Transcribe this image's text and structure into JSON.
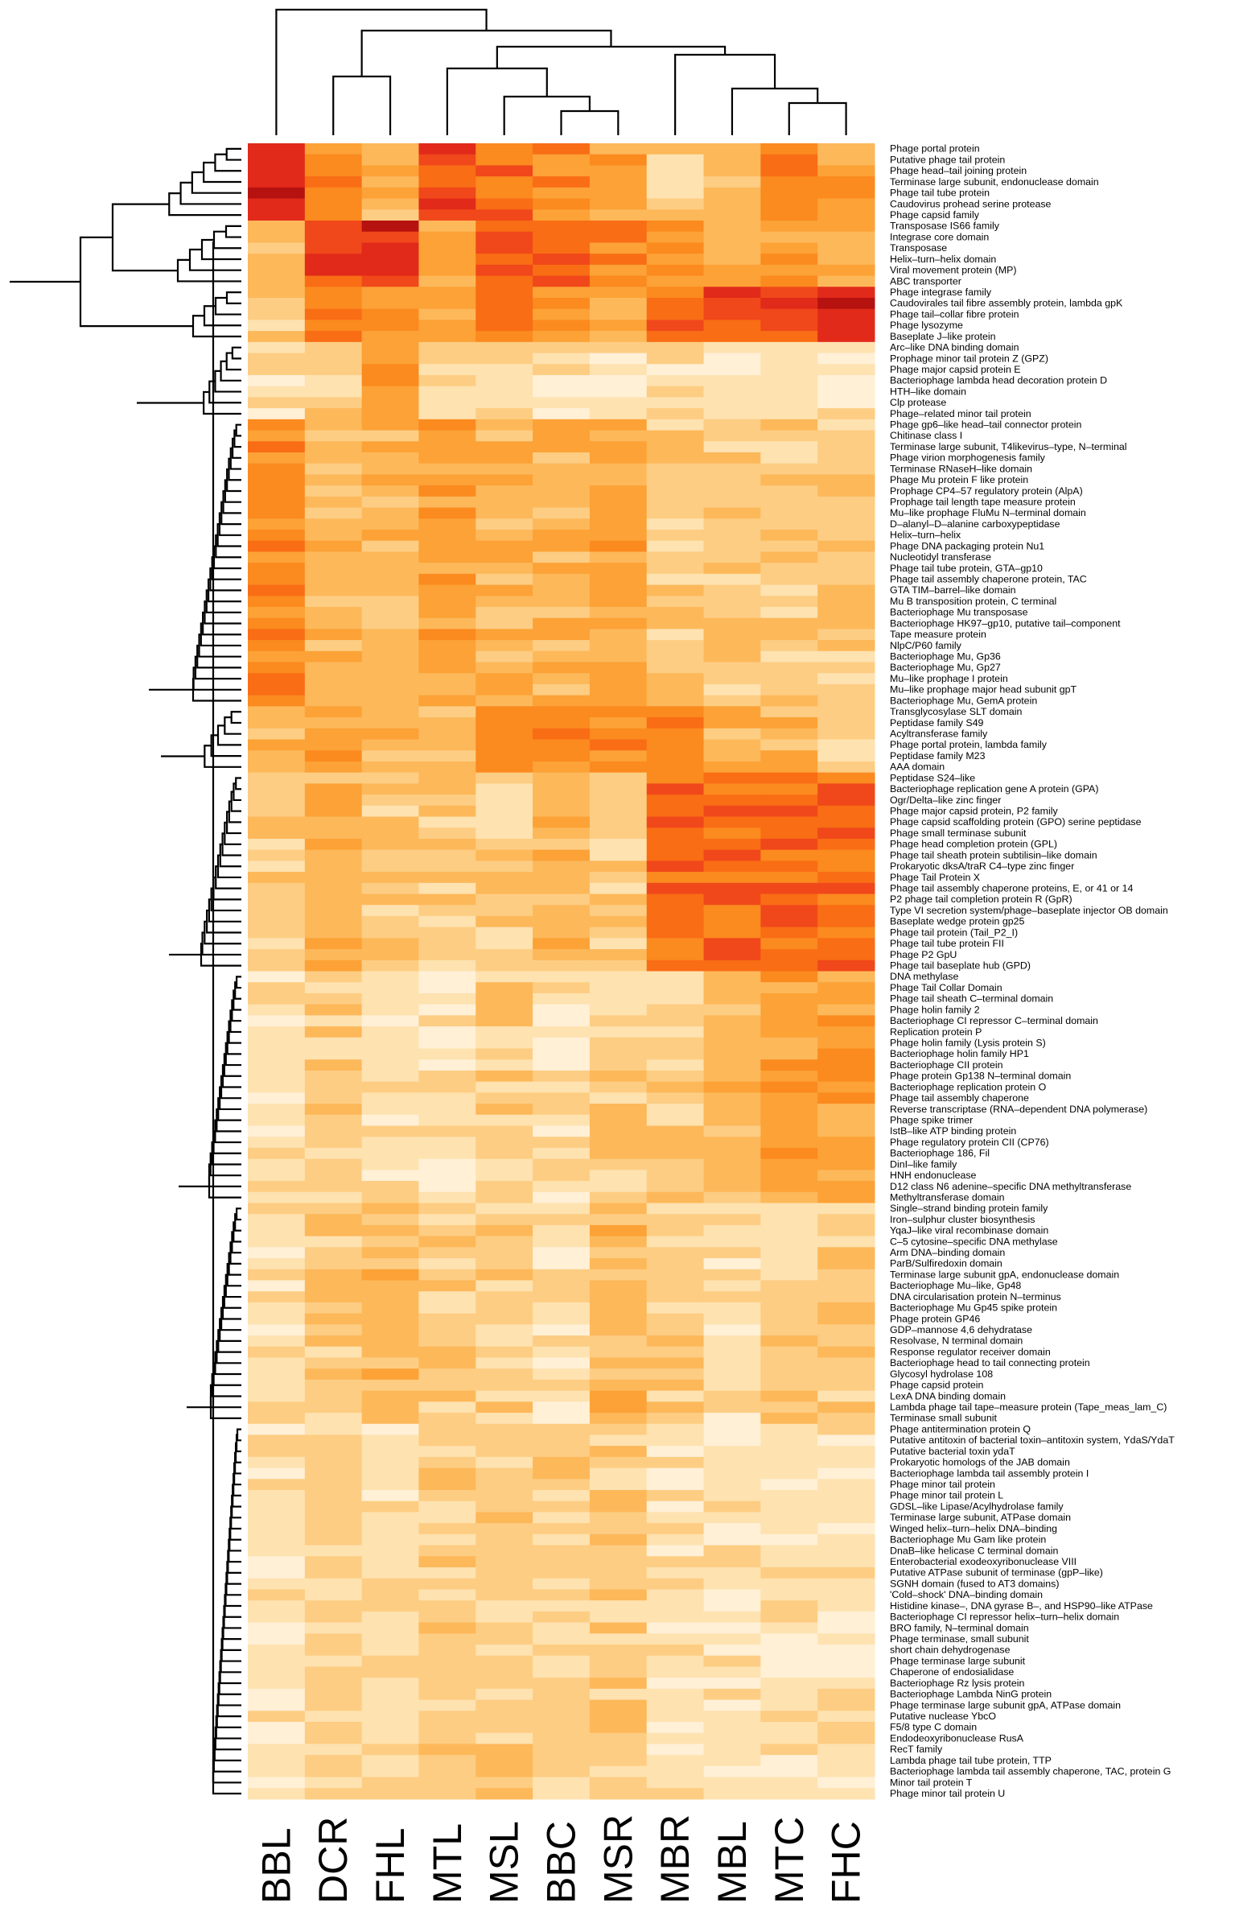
{
  "chart_data": {
    "type": "heatmap",
    "title": "",
    "color_scale": [
      "#fffdf6",
      "#fff0d6",
      "#fee2b0",
      "#fdcd83",
      "#fdb85a",
      "#fca236",
      "#fb8a1f",
      "#f96d15",
      "#f0481a",
      "#e12a1a",
      "#b51210",
      "#7f0000"
    ],
    "columns": [
      "BBL",
      "DCR",
      "FHL",
      "MTL",
      "MSL",
      "BBC",
      "MSR",
      "MBR",
      "MBL",
      "MTC",
      "FHC"
    ],
    "rows": [
      "Phage portal protein",
      "Putative phage tail protein",
      "Phage head–tail joining protein",
      "Terminase large subunit, endonuclease domain",
      "Phage tail tube protein",
      "Caudovirus prohead serine protease",
      "Phage capsid family",
      "Transposase IS66 family",
      "Integrase core domain",
      "Transposase",
      "Helix–turn–helix domain",
      "Viral movement protein (MP)",
      "ABC transporter",
      "Phage integrase family",
      "Caudovirales tail fibre assembly protein, lambda gpK",
      "Phage tail–collar fibre protein",
      "Phage lysozyme",
      "Baseplate J–like protein",
      "Arc–like DNA binding domain",
      "Prophage minor tail protein Z (GPZ)",
      "Phage major capsid protein E",
      "Bacteriophage lambda head decoration protein D",
      "HTH–like domain",
      "Clp protease",
      "Phage–related minor tail protein",
      "Phage gp6–like head–tail connector protein",
      "Chitinase class I",
      "Terminase large subunit, T4likevirus–type, N–terminal",
      "Phage virion morphogenesis family",
      "Terminase RNaseH–like domain",
      "Phage Mu protein F like protein",
      "Prophage CP4–57 regulatory protein (AlpA)",
      "Prophage tail length tape measure protein",
      "Mu–like prophage FluMu N–terminal domain",
      "D–alanyl–D–alanine carboxypeptidase",
      "Helix–turn–helix",
      "Phage DNA packaging protein Nu1",
      "Nucleotidyl transferase",
      "Phage tail tube protein, GTA–gp10",
      "Phage tail assembly chaperone protein, TAC",
      "GTA TIM–barrel–like domain",
      "Mu B transposition protein, C terminal",
      "Bacteriophage Mu transposase",
      "Bacteriophage HK97–gp10, putative tail–component",
      "Tape measure protein",
      "NlpC/P60 family",
      "Bacteriophage Mu, Gp36",
      "Bacteriophage Mu, Gp27",
      "Mu–like prophage I protein",
      "Mu–like prophage major head subunit gpT",
      "Bacteriophage Mu, GemA protein",
      "Transglycosylase SLT domain",
      "Peptidase family S49",
      "Acyltransferase family",
      "Phage portal protein, lambda family",
      "Peptidase family M23",
      "AAA domain",
      "Peptidase S24–like",
      "Bacteriophage replication gene A protein (GPA)",
      "Ogr/Delta–like zinc finger",
      "Phage major capsid protein, P2 family",
      "Phage capsid scaffolding protein (GPO) serine peptidase",
      "Phage small terminase subunit",
      "Phage head completion protein (GPL)",
      "Phage tail sheath protein subtilisin–like domain",
      "Prokaryotic dksA/traR C4–type zinc finger",
      "Phage Tail Protein X",
      "Phage tail assembly chaperone proteins, E, or 41 or 14",
      "P2 phage tail completion protein R (GpR)",
      "Type VI secretion system/phage–baseplate injector OB domain",
      "Baseplate wedge protein gp25",
      "Phage tail protein (Tail_P2_I)",
      "Phage tail tube protein FII",
      "Phage P2 GpU",
      "Phage tail baseplate hub (GPD)",
      "DNA methylase",
      "Phage Tail Collar Domain",
      "Phage tail sheath C–terminal domain",
      "Phage holin family 2",
      "Bacteriophage CI repressor C–terminal domain",
      "Replication protein P",
      "Phage holin family (Lysis protein S)",
      "Bacteriophage holin family HP1",
      "Bacteriophage CII protein",
      "Phage protein Gp138 N–terminal domain",
      "Bacteriophage replication protein O",
      "Phage tail assembly chaperone",
      "Reverse transcriptase (RNA–dependent DNA polymerase)",
      "Phage spike trimer",
      "IstB–like ATP binding protein",
      "Phage regulatory protein CII (CP76)",
      "Bacteriophage 186, Fil",
      "DinI–like family",
      "HNH endonuclease",
      "D12 class N6 adenine–specific DNA methyltransferase",
      "Methyltransferase domain",
      "Single–strand binding protein family",
      "Iron–sulphur cluster biosynthesis",
      "YqaJ–like viral recombinase domain",
      "C–5 cytosine–specific DNA methylase",
      "Arm DNA–binding domain",
      "ParB/Sulfiredoxin domain",
      "Terminase large subunit gpA, endonuclease domain",
      "Bacteriophage Mu–like, Gp48",
      "DNA circularisation protein N–terminus",
      "Bacteriophage Mu Gp45 spike protein",
      "Phage protein GP46",
      "GDP–mannose 4,6 dehydratase",
      "Resolvase, N terminal domain",
      "Response regulator receiver domain",
      "Bacteriophage head to tail connecting protein",
      "Glycosyl hydrolase 108",
      "Phage capsid protein",
      "LexA DNA binding domain",
      "Lambda phage tail tape–measure protein (Tape_meas_lam_C)",
      "Terminase small subunit",
      "Phage antitermination protein Q",
      "Putative antitoxin of bacterial toxin–antitoxin system, YdaS/YdaT",
      "Putative bacterial toxin ydaT",
      "Prokaryotic homologs of the JAB domain",
      "Bacteriophage lambda tail assembly protein I",
      "Phage minor tail protein",
      "Phage minor tail protein L",
      "GDSL–like Lipase/Acylhydrolase family",
      "Terminase large subunit, ATPase domain",
      "Winged helix–turn–helix DNA–binding",
      "Bacteriophage Mu Gam like protein",
      "DnaB–like helicase C terminal domain",
      "Enterobacterial exodeoxyribonuclease VIII",
      "Putative ATPase subunit of terminase (gpP–like)",
      "SGNH domain (fused to AT3 domains)",
      "'Cold–shock' DNA–binding domain",
      "Histidine kinase–, DNA gyrase B–, and HSP90–like ATPase",
      "Bacteriophage CI repressor helix–turn–helix domain",
      "BRO family, N–terminal domain",
      "Phage terminase, small subunit",
      "short chain dehydrogenase",
      "Phage terminase large subunit",
      "Chaperone of endosialidase",
      "Bacteriophage Rz lysis protein",
      "Bacteriophage Lambda NinG protein",
      "Phage terminase large subunit gpA, ATPase domain",
      "Putative nuclease YbcO",
      "F5/8 type C domain",
      "Endodeoxyribonuclease RusA",
      "RecT family",
      "Lambda phage tail tube protein, TTP",
      "Bacteriophage lambda tail assembly chaperone, TAC, protein G",
      "Minor tail protein T",
      "Phage minor tail protein U"
    ],
    "blocks": [
      {
        "rows": [
          0,
          6
        ],
        "values": [
          9,
          6,
          4,
          8,
          7,
          6,
          5,
          3,
          4,
          6,
          5
        ]
      },
      {
        "rows": [
          7,
          12
        ],
        "values": [
          4,
          8,
          9,
          5,
          7,
          7,
          6,
          6,
          4,
          5,
          4
        ]
      },
      {
        "rows": [
          13,
          17
        ],
        "values": [
          3,
          6,
          6,
          5,
          7,
          5,
          4,
          7,
          8,
          8,
          9
        ]
      },
      {
        "rows": [
          18,
          24
        ],
        "values": [
          2,
          3,
          6,
          2,
          2,
          2,
          2,
          2,
          2,
          2,
          2
        ]
      },
      {
        "rows": [
          25,
          50
        ],
        "values": [
          6,
          4,
          4,
          5,
          4,
          4,
          5,
          3,
          3,
          3,
          3
        ]
      },
      {
        "rows": [
          51,
          56
        ],
        "values": [
          4,
          5,
          4,
          4,
          6,
          6,
          6,
          6,
          4,
          4,
          3
        ]
      },
      {
        "rows": [
          57,
          74
        ],
        "values": [
          3,
          4,
          3,
          3,
          3,
          4,
          3,
          7,
          7,
          7,
          7
        ]
      },
      {
        "rows": [
          75,
          95
        ],
        "values": [
          2,
          3,
          2,
          2,
          3,
          2,
          3,
          3,
          4,
          5,
          5
        ]
      },
      {
        "rows": [
          96,
          115
        ],
        "values": [
          2,
          3,
          4,
          3,
          3,
          2,
          4,
          3,
          2,
          3,
          3
        ]
      },
      {
        "rows": [
          116,
          151
        ],
        "values": [
          2,
          3,
          2,
          3,
          3,
          3,
          3,
          2,
          2,
          2,
          2
        ]
      }
    ],
    "xlabel": "",
    "ylabel": ""
  }
}
